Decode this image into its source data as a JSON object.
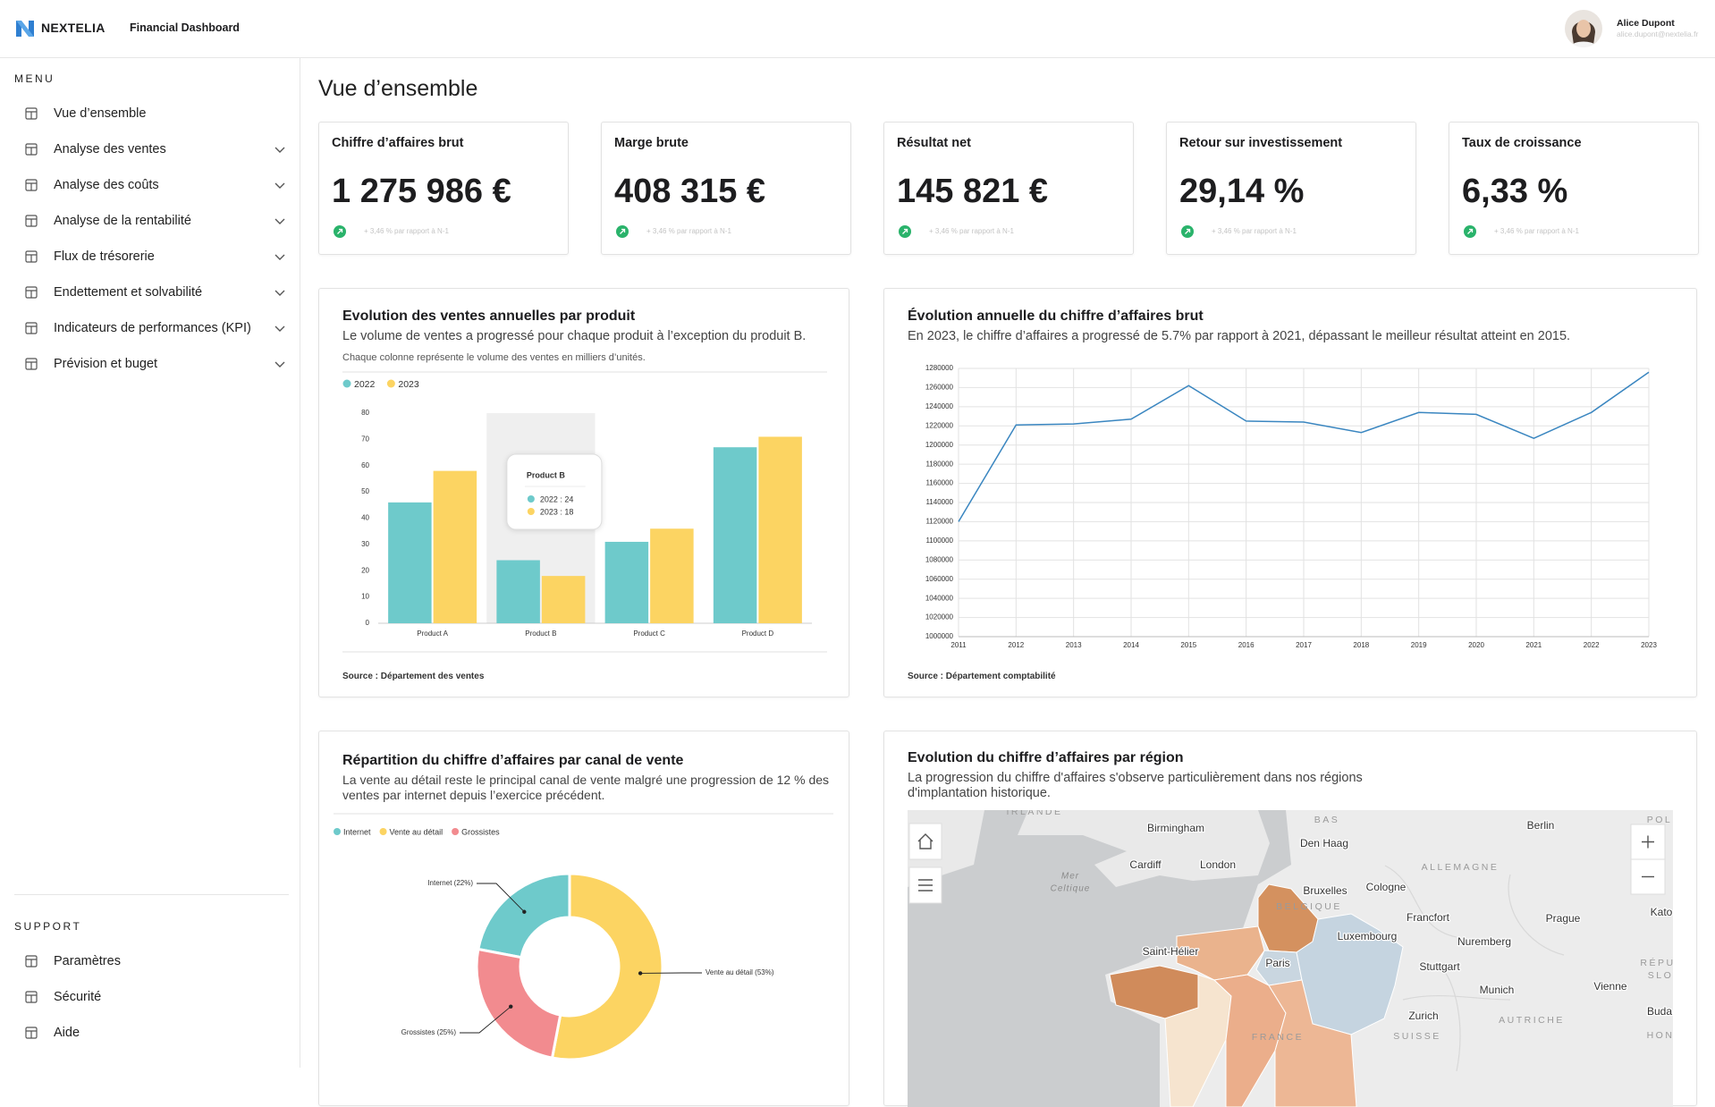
{
  "header": {
    "brand": "NEXTELIA",
    "title": "Financial Dashboard",
    "user_name": "Alice Dupont",
    "user_email": "alice.dupont@nextelia.fr"
  },
  "sidebar": {
    "menu_title": "MENU",
    "menu": [
      {
        "label": "Vue d’ensemble",
        "expandable": false
      },
      {
        "label": "Analyse des ventes",
        "expandable": true
      },
      {
        "label": "Analyse des coûts",
        "expandable": true
      },
      {
        "label": "Analyse de la rentabilité",
        "expandable": true
      },
      {
        "label": "Flux de trésorerie",
        "expandable": true
      },
      {
        "label": "Endettement et solvabilité",
        "expandable": true
      },
      {
        "label": "Indicateurs de performances (KPI)",
        "expandable": true
      },
      {
        "label": "Prévision et buget",
        "expandable": true
      }
    ],
    "support_title": "SUPPORT",
    "support": [
      "Paramètres",
      "Sécurité",
      "Aide"
    ]
  },
  "page_title": "Vue d’ensemble",
  "kpis": [
    {
      "label": "Chiffre d’affaires brut",
      "value": "1 275 986 €",
      "change": "+ 3,46 % par rapport à N-1"
    },
    {
      "label": "Marge brute",
      "value": "408 315 €",
      "change": "+ 3,46 % par rapport à N-1"
    },
    {
      "label": "Résultat net",
      "value": "145 821 €",
      "change": "+ 3,46 % par rapport à N-1"
    },
    {
      "label": "Retour sur investissement",
      "value": "29,14 %",
      "change": "+ 3,46 % par rapport à N-1"
    },
    {
      "label": "Taux de croissance",
      "value": "6,33 %",
      "change": "+ 3,46 % par rapport à N-1"
    }
  ],
  "chart_data": [
    {
      "type": "bar",
      "title": "Evolution des ventes annuelles par produit",
      "subtitle": "Le volume de ventes a progressé pour chaque produit à l’exception du produit B.",
      "note": "Chaque colonne représente le volume des ventes en milliers d’unités.",
      "categories": [
        "Product A",
        "Product B",
        "Product C",
        "Product D"
      ],
      "series": [
        {
          "name": "2022",
          "color": "#6ecacb",
          "values": [
            46,
            24,
            31,
            67
          ]
        },
        {
          "name": "2023",
          "color": "#fcd462",
          "values": [
            58,
            18,
            36,
            71
          ]
        }
      ],
      "ylim": [
        0,
        80
      ],
      "yticks": [
        0,
        10,
        20,
        30,
        40,
        50,
        60,
        70,
        80
      ],
      "grid": false,
      "tooltip": {
        "title": "Product B",
        "lines": [
          "2022 : 24",
          "2023 : 18"
        ]
      },
      "source": "Source : Département des ventes"
    },
    {
      "type": "line",
      "title": "Évolution annuelle du chiffre d’affaires brut",
      "subtitle": "En 2023, le chiffre d’affaires a progressé de 5.7% par rapport à 2021, dépassant le meilleur résultat atteint en 2015.",
      "x": [
        2011,
        2012,
        2013,
        2014,
        2015,
        2016,
        2017,
        2018,
        2019,
        2020,
        2021,
        2022,
        2023
      ],
      "values": [
        1120000,
        1221000,
        1222000,
        1227000,
        1262000,
        1225000,
        1224000,
        1213000,
        1234000,
        1232000,
        1207000,
        1234000,
        1276000
      ],
      "color": "#3a86c0",
      "xlim": [
        2011,
        2023
      ],
      "xticks": [
        2011,
        2012,
        2013,
        2014,
        2015,
        2016,
        2017,
        2018,
        2019,
        2020,
        2021,
        2022,
        2023
      ],
      "ylim": [
        1000000,
        1280000
      ],
      "yticks": [
        1000000,
        1020000,
        1040000,
        1060000,
        1080000,
        1100000,
        1120000,
        1140000,
        1160000,
        1180000,
        1200000,
        1220000,
        1240000,
        1260000,
        1280000
      ],
      "grid": true,
      "source": "Source : Département comptabilité"
    },
    {
      "type": "pie",
      "title": "Répartition du chiffre d’affaires par canal de vente",
      "subtitle": "La vente au détail reste le principal canal de vente malgré une progression de 12 % des ventes par internet depuis l’exercice précédent.",
      "categories": [
        "Internet",
        "Vente au détail",
        "Grossistes"
      ],
      "values": [
        22,
        53,
        25
      ],
      "value_labels": [
        "Internet (22%)",
        "Vente au détail (53%)",
        "Grossistes (25%)"
      ],
      "colors": [
        "#6ecacb",
        "#fcd462",
        "#f28b8f"
      ],
      "donut": true
    }
  ],
  "map": {
    "title": "Evolution du chiffre d’affaires par région",
    "subtitle": "La progression du chiffre d'affaires s'observe particulièrement dans nos régions d'implantation historique.",
    "labels": [
      "IRLANDE",
      "Birmingham",
      "Den Haag",
      "BAS",
      "Berlin",
      "POL",
      "Cardiff",
      "London",
      "ALLEMAGNE",
      "Mer",
      "Celtique",
      "Bruxelles",
      "Cologne",
      "BELGIQUE",
      "Francfort",
      "Prague",
      "Kato",
      "Luxembourg",
      "Nuremberg",
      "Saint-Hélier",
      "Paris",
      "Stuttgart",
      "RÉPU",
      "SLO",
      "Munich",
      "Vienne",
      "Zurich",
      "AUTRICHE",
      "Buda",
      "HON",
      "FRANCE",
      "SUISSE"
    ]
  }
}
